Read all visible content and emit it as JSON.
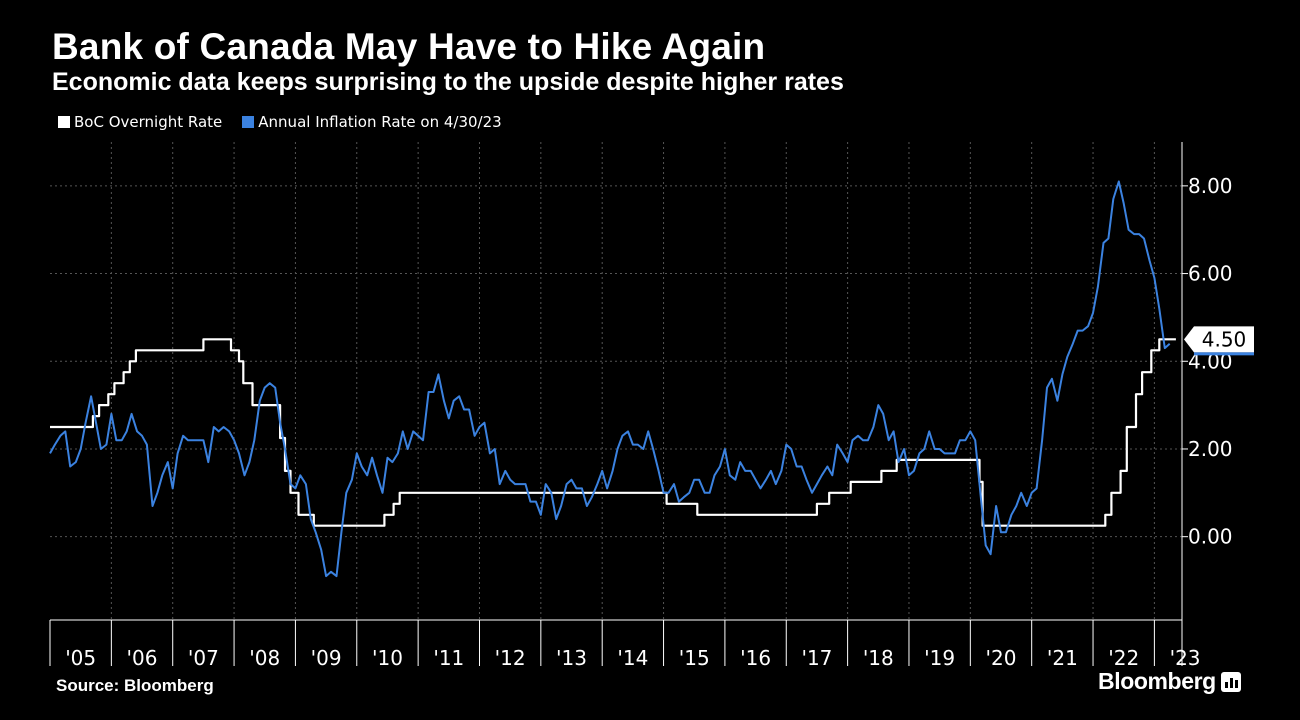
{
  "header": {
    "title": "Bank of Canada May Have to Hike Again",
    "subtitle": "Economic data keeps surprising to the upside despite higher rates"
  },
  "legend": {
    "items": [
      {
        "label": "BoC Overnight Rate",
        "color": "#ffffff"
      },
      {
        "label": "Annual Inflation Rate on 4/30/23",
        "color": "#3b82e0"
      }
    ]
  },
  "footer": {
    "source": "Source: Bloomberg",
    "brand": "Bloomberg",
    "brand_icon": "bar-chart-icon"
  },
  "colors": {
    "background": "#000000",
    "grid": "#555555",
    "rate_line": "#ffffff",
    "inflation_line": "#3b82e0"
  },
  "chart_data": {
    "type": "line",
    "title": "Bank of Canada May Have to Hike Again",
    "xlabel": "",
    "ylabel": "",
    "xlim": [
      2005.0,
      2023.45
    ],
    "ylim": [
      -1.9,
      9.0
    ],
    "y_ticks": [
      0,
      2,
      4,
      6,
      8
    ],
    "y_tick_labels": [
      "0.00",
      "2.00",
      "4.00",
      "6.00",
      "8.00"
    ],
    "x_tick_labels": [
      "'05",
      "'06",
      "'07",
      "'08",
      "'09",
      "'10",
      "'11",
      "'12",
      "'13",
      "'14",
      "'15",
      "'16",
      "'17",
      "'18",
      "'19",
      "'20",
      "'21",
      "'22",
      "'23"
    ],
    "grid": true,
    "legend_position": "top-left",
    "last_value_label": "4.50",
    "series": [
      {
        "name": "BoC Overnight Rate",
        "color": "#ffffff",
        "step": true,
        "points": [
          [
            2005.0,
            2.5
          ],
          [
            2005.7,
            2.75
          ],
          [
            2005.8,
            3.0
          ],
          [
            2005.95,
            3.25
          ],
          [
            2006.05,
            3.5
          ],
          [
            2006.2,
            3.75
          ],
          [
            2006.3,
            4.0
          ],
          [
            2006.4,
            4.25
          ],
          [
            2007.5,
            4.5
          ],
          [
            2007.95,
            4.25
          ],
          [
            2008.08,
            4.0
          ],
          [
            2008.15,
            3.5
          ],
          [
            2008.3,
            3.0
          ],
          [
            2008.75,
            2.25
          ],
          [
            2008.83,
            1.5
          ],
          [
            2008.92,
            1.0
          ],
          [
            2009.05,
            0.5
          ],
          [
            2009.3,
            0.25
          ],
          [
            2010.45,
            0.5
          ],
          [
            2010.6,
            0.75
          ],
          [
            2010.7,
            1.0
          ],
          [
            2015.05,
            0.75
          ],
          [
            2015.55,
            0.5
          ],
          [
            2017.5,
            0.75
          ],
          [
            2017.7,
            1.0
          ],
          [
            2018.05,
            1.25
          ],
          [
            2018.55,
            1.5
          ],
          [
            2018.8,
            1.75
          ],
          [
            2020.15,
            1.25
          ],
          [
            2020.2,
            0.25
          ],
          [
            2022.2,
            0.5
          ],
          [
            2022.3,
            1.0
          ],
          [
            2022.45,
            1.5
          ],
          [
            2022.55,
            2.5
          ],
          [
            2022.7,
            3.25
          ],
          [
            2022.8,
            3.75
          ],
          [
            2022.95,
            4.25
          ],
          [
            2023.08,
            4.5
          ],
          [
            2023.35,
            4.5
          ]
        ]
      },
      {
        "name": "Annual Inflation Rate on 4/30/23",
        "color": "#3b82e0",
        "step": false,
        "points": [
          [
            2005.0,
            1.9
          ],
          [
            2005.08,
            2.1
          ],
          [
            2005.17,
            2.3
          ],
          [
            2005.25,
            2.4
          ],
          [
            2005.33,
            1.6
          ],
          [
            2005.42,
            1.7
          ],
          [
            2005.5,
            2.0
          ],
          [
            2005.58,
            2.6
          ],
          [
            2005.67,
            3.2
          ],
          [
            2005.75,
            2.6
          ],
          [
            2005.83,
            2.0
          ],
          [
            2005.92,
            2.1
          ],
          [
            2006.0,
            2.8
          ],
          [
            2006.08,
            2.2
          ],
          [
            2006.17,
            2.2
          ],
          [
            2006.25,
            2.4
          ],
          [
            2006.33,
            2.8
          ],
          [
            2006.42,
            2.4
          ],
          [
            2006.5,
            2.3
          ],
          [
            2006.58,
            2.1
          ],
          [
            2006.67,
            0.7
          ],
          [
            2006.75,
            1.0
          ],
          [
            2006.83,
            1.4
          ],
          [
            2006.92,
            1.7
          ],
          [
            2007.0,
            1.1
          ],
          [
            2007.08,
            1.9
          ],
          [
            2007.17,
            2.3
          ],
          [
            2007.25,
            2.2
          ],
          [
            2007.33,
            2.2
          ],
          [
            2007.42,
            2.2
          ],
          [
            2007.5,
            2.2
          ],
          [
            2007.58,
            1.7
          ],
          [
            2007.67,
            2.5
          ],
          [
            2007.75,
            2.4
          ],
          [
            2007.83,
            2.5
          ],
          [
            2007.92,
            2.4
          ],
          [
            2008.0,
            2.2
          ],
          [
            2008.08,
            1.9
          ],
          [
            2008.17,
            1.4
          ],
          [
            2008.25,
            1.7
          ],
          [
            2008.33,
            2.2
          ],
          [
            2008.42,
            3.1
          ],
          [
            2008.5,
            3.4
          ],
          [
            2008.58,
            3.5
          ],
          [
            2008.67,
            3.4
          ],
          [
            2008.75,
            2.6
          ],
          [
            2008.83,
            2.0
          ],
          [
            2008.92,
            1.2
          ],
          [
            2009.0,
            1.1
          ],
          [
            2009.08,
            1.4
          ],
          [
            2009.17,
            1.2
          ],
          [
            2009.25,
            0.4
          ],
          [
            2009.33,
            0.1
          ],
          [
            2009.42,
            -0.3
          ],
          [
            2009.5,
            -0.9
          ],
          [
            2009.58,
            -0.8
          ],
          [
            2009.67,
            -0.9
          ],
          [
            2009.75,
            0.1
          ],
          [
            2009.83,
            1.0
          ],
          [
            2009.92,
            1.3
          ],
          [
            2010.0,
            1.9
          ],
          [
            2010.08,
            1.6
          ],
          [
            2010.17,
            1.4
          ],
          [
            2010.25,
            1.8
          ],
          [
            2010.33,
            1.4
          ],
          [
            2010.42,
            1.0
          ],
          [
            2010.5,
            1.8
          ],
          [
            2010.58,
            1.7
          ],
          [
            2010.67,
            1.9
          ],
          [
            2010.75,
            2.4
          ],
          [
            2010.83,
            2.0
          ],
          [
            2010.92,
            2.4
          ],
          [
            2011.0,
            2.3
          ],
          [
            2011.08,
            2.2
          ],
          [
            2011.17,
            3.3
          ],
          [
            2011.25,
            3.3
          ],
          [
            2011.33,
            3.7
          ],
          [
            2011.42,
            3.1
          ],
          [
            2011.5,
            2.7
          ],
          [
            2011.58,
            3.1
          ],
          [
            2011.67,
            3.2
          ],
          [
            2011.75,
            2.9
          ],
          [
            2011.83,
            2.9
          ],
          [
            2011.92,
            2.3
          ],
          [
            2012.0,
            2.5
          ],
          [
            2012.08,
            2.6
          ],
          [
            2012.17,
            1.9
          ],
          [
            2012.25,
            2.0
          ],
          [
            2012.33,
            1.2
          ],
          [
            2012.42,
            1.5
          ],
          [
            2012.5,
            1.3
          ],
          [
            2012.58,
            1.2
          ],
          [
            2012.67,
            1.2
          ],
          [
            2012.75,
            1.2
          ],
          [
            2012.83,
            0.8
          ],
          [
            2012.92,
            0.8
          ],
          [
            2013.0,
            0.5
          ],
          [
            2013.08,
            1.2
          ],
          [
            2013.17,
            1.0
          ],
          [
            2013.25,
            0.4
          ],
          [
            2013.33,
            0.7
          ],
          [
            2013.42,
            1.2
          ],
          [
            2013.5,
            1.3
          ],
          [
            2013.58,
            1.1
          ],
          [
            2013.67,
            1.1
          ],
          [
            2013.75,
            0.7
          ],
          [
            2013.83,
            0.9
          ],
          [
            2013.92,
            1.2
          ],
          [
            2014.0,
            1.5
          ],
          [
            2014.08,
            1.1
          ],
          [
            2014.17,
            1.5
          ],
          [
            2014.25,
            2.0
          ],
          [
            2014.33,
            2.3
          ],
          [
            2014.42,
            2.4
          ],
          [
            2014.5,
            2.1
          ],
          [
            2014.58,
            2.1
          ],
          [
            2014.67,
            2.0
          ],
          [
            2014.75,
            2.4
          ],
          [
            2014.83,
            2.0
          ],
          [
            2014.92,
            1.5
          ],
          [
            2015.0,
            1.0
          ],
          [
            2015.08,
            1.0
          ],
          [
            2015.17,
            1.2
          ],
          [
            2015.25,
            0.8
          ],
          [
            2015.33,
            0.9
          ],
          [
            2015.42,
            1.0
          ],
          [
            2015.5,
            1.3
          ],
          [
            2015.58,
            1.3
          ],
          [
            2015.67,
            1.0
          ],
          [
            2015.75,
            1.0
          ],
          [
            2015.83,
            1.4
          ],
          [
            2015.92,
            1.6
          ],
          [
            2016.0,
            2.0
          ],
          [
            2016.08,
            1.4
          ],
          [
            2016.17,
            1.3
          ],
          [
            2016.25,
            1.7
          ],
          [
            2016.33,
            1.5
          ],
          [
            2016.42,
            1.5
          ],
          [
            2016.5,
            1.3
          ],
          [
            2016.58,
            1.1
          ],
          [
            2016.67,
            1.3
          ],
          [
            2016.75,
            1.5
          ],
          [
            2016.83,
            1.2
          ],
          [
            2016.92,
            1.5
          ],
          [
            2017.0,
            2.1
          ],
          [
            2017.08,
            2.0
          ],
          [
            2017.17,
            1.6
          ],
          [
            2017.25,
            1.6
          ],
          [
            2017.33,
            1.3
          ],
          [
            2017.42,
            1.0
          ],
          [
            2017.5,
            1.2
          ],
          [
            2017.58,
            1.4
          ],
          [
            2017.67,
            1.6
          ],
          [
            2017.75,
            1.4
          ],
          [
            2017.83,
            2.1
          ],
          [
            2017.92,
            1.9
          ],
          [
            2018.0,
            1.7
          ],
          [
            2018.08,
            2.2
          ],
          [
            2018.17,
            2.3
          ],
          [
            2018.25,
            2.2
          ],
          [
            2018.33,
            2.2
          ],
          [
            2018.42,
            2.5
          ],
          [
            2018.5,
            3.0
          ],
          [
            2018.58,
            2.8
          ],
          [
            2018.67,
            2.2
          ],
          [
            2018.75,
            2.4
          ],
          [
            2018.83,
            1.7
          ],
          [
            2018.92,
            2.0
          ],
          [
            2019.0,
            1.4
          ],
          [
            2019.08,
            1.5
          ],
          [
            2019.17,
            1.9
          ],
          [
            2019.25,
            2.0
          ],
          [
            2019.33,
            2.4
          ],
          [
            2019.42,
            2.0
          ],
          [
            2019.5,
            2.0
          ],
          [
            2019.58,
            1.9
          ],
          [
            2019.67,
            1.9
          ],
          [
            2019.75,
            1.9
          ],
          [
            2019.83,
            2.2
          ],
          [
            2019.92,
            2.2
          ],
          [
            2020.0,
            2.4
          ],
          [
            2020.08,
            2.2
          ],
          [
            2020.17,
            0.9
          ],
          [
            2020.25,
            -0.2
          ],
          [
            2020.33,
            -0.4
          ],
          [
            2020.42,
            0.7
          ],
          [
            2020.5,
            0.1
          ],
          [
            2020.58,
            0.1
          ],
          [
            2020.67,
            0.5
          ],
          [
            2020.75,
            0.7
          ],
          [
            2020.83,
            1.0
          ],
          [
            2020.92,
            0.7
          ],
          [
            2021.0,
            1.0
          ],
          [
            2021.08,
            1.1
          ],
          [
            2021.17,
            2.2
          ],
          [
            2021.25,
            3.4
          ],
          [
            2021.33,
            3.6
          ],
          [
            2021.42,
            3.1
          ],
          [
            2021.5,
            3.7
          ],
          [
            2021.58,
            4.1
          ],
          [
            2021.67,
            4.4
          ],
          [
            2021.75,
            4.7
          ],
          [
            2021.83,
            4.7
          ],
          [
            2021.92,
            4.8
          ],
          [
            2022.0,
            5.1
          ],
          [
            2022.08,
            5.7
          ],
          [
            2022.17,
            6.7
          ],
          [
            2022.25,
            6.8
          ],
          [
            2022.33,
            7.7
          ],
          [
            2022.42,
            8.1
          ],
          [
            2022.5,
            7.6
          ],
          [
            2022.58,
            7.0
          ],
          [
            2022.67,
            6.9
          ],
          [
            2022.75,
            6.9
          ],
          [
            2022.83,
            6.8
          ],
          [
            2022.92,
            6.3
          ],
          [
            2023.0,
            5.9
          ],
          [
            2023.08,
            5.2
          ],
          [
            2023.17,
            4.3
          ],
          [
            2023.25,
            4.4
          ]
        ]
      }
    ]
  }
}
